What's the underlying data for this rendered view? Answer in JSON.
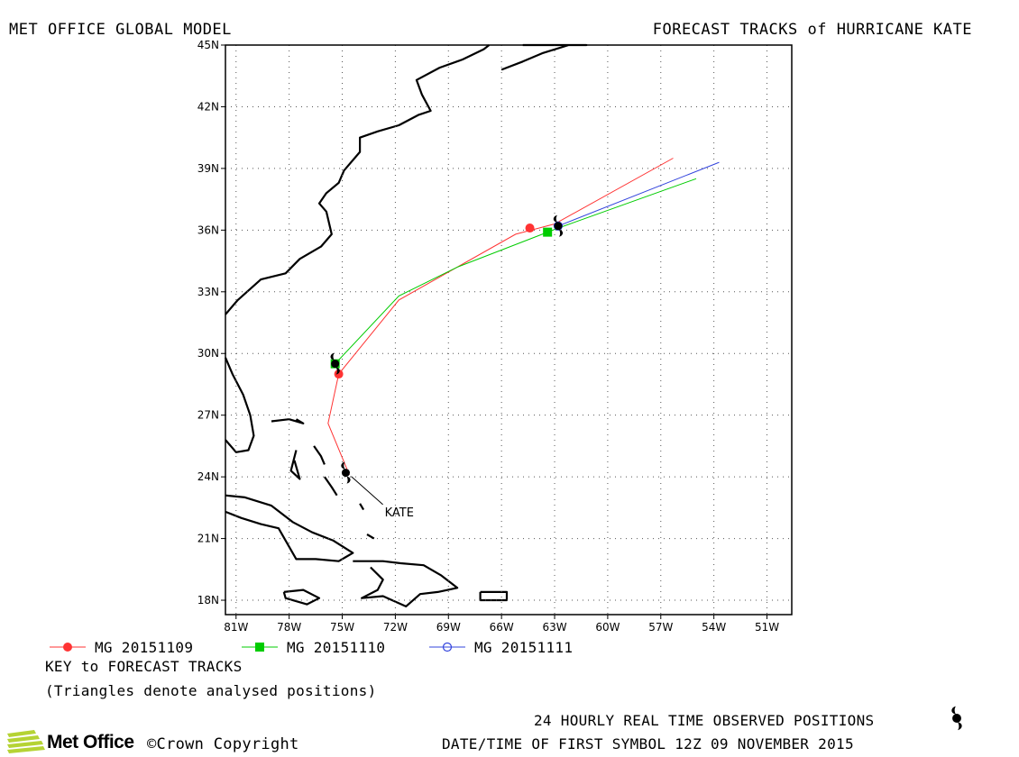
{
  "header": {
    "left_title": "MET OFFICE GLOBAL MODEL",
    "right_title": "FORECAST TRACKS of HURRICANE KATE"
  },
  "chart_data": {
    "type": "scatter",
    "projection": "mercator-like lat/lon map",
    "xlim": [
      -81.6,
      -49.6
    ],
    "ylim": [
      17.3,
      45
    ],
    "grid": true,
    "x_tick_labels": [
      "81W",
      "78W",
      "75W",
      "72W",
      "69W",
      "66W",
      "63W",
      "60W",
      "57W",
      "54W",
      "51W"
    ],
    "x_ticks": [
      -81,
      -78,
      -75,
      -72,
      -69,
      -66,
      -63,
      -60,
      -57,
      -54,
      -51
    ],
    "y_tick_labels": [
      "45N",
      "42N",
      "39N",
      "36N",
      "33N",
      "30N",
      "27N",
      "24N",
      "21N",
      "18N"
    ],
    "y_ticks": [
      45,
      42,
      39,
      36,
      33,
      30,
      27,
      24,
      21,
      18
    ],
    "storm_label": "KATE",
    "storm_label_position": {
      "lon": -72.6,
      "lat": 22.3
    },
    "observed_positions": [
      {
        "lon": -74.8,
        "lat": 24.2
      },
      {
        "lon": -75.4,
        "lat": 29.5
      },
      {
        "lon": -62.8,
        "lat": 36.2
      }
    ],
    "series": [
      {
        "name": "MG 20151109",
        "color": "#ff3333",
        "marker": "filled-circle",
        "track": [
          [
            -74.6,
            24.1
          ],
          [
            -75.8,
            26.6
          ],
          [
            -75.2,
            29.0
          ],
          [
            -71.8,
            32.6
          ],
          [
            -65.2,
            35.8
          ],
          [
            -63.0,
            36.3
          ],
          [
            -56.3,
            39.5
          ]
        ],
        "symbols": [
          [
            -75.2,
            29.0
          ],
          [
            -64.4,
            36.1
          ]
        ]
      },
      {
        "name": "MG 20151110",
        "color": "#00cc00",
        "marker": "filled-square",
        "track": [
          [
            -75.4,
            29.5
          ],
          [
            -71.8,
            32.8
          ],
          [
            -68.5,
            34.2
          ],
          [
            -63.4,
            35.9
          ],
          [
            -62.8,
            36.1
          ],
          [
            -55.0,
            38.5
          ]
        ],
        "symbols": [
          [
            -75.4,
            29.5
          ],
          [
            -63.4,
            35.9
          ]
        ]
      },
      {
        "name": "MG 20151111",
        "color": "#3344dd",
        "marker": "open-circle",
        "track": [
          [
            -62.8,
            36.2
          ],
          [
            -53.7,
            39.3
          ]
        ],
        "symbols": [
          [
            -62.8,
            36.2
          ]
        ]
      }
    ],
    "key_title": "KEY to FORECAST TRACKS",
    "key_note": "(Triangles denote analysed positions)"
  },
  "footer": {
    "observed_note": "24 HOURLY REAL TIME OBSERVED POSITIONS",
    "datetime_note": "DATE/TIME OF FIRST SYMBOL 12Z 09 NOVEMBER 2015",
    "copyright": "©Crown Copyright",
    "logo_text": "Met Office"
  }
}
